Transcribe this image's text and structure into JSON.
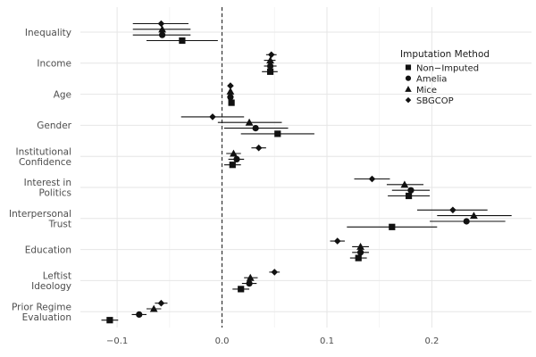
{
  "chart_data": {
    "type": "scatter",
    "title": "",
    "xlabel": "",
    "ylabel": "",
    "xlim": [
      -0.135,
      0.295
    ],
    "xticks": [
      -0.1,
      0.0,
      0.1,
      0.2
    ],
    "xtick_labels": [
      "−0.1",
      "0.0",
      "0.1",
      "0.2"
    ],
    "reference_line": 0,
    "grid": true,
    "legend_position": "top-right",
    "legend": {
      "title": "Imputation Method",
      "entries": [
        {
          "name": "Non−Imputed",
          "marker": "square"
        },
        {
          "name": "Amelia",
          "marker": "circle"
        },
        {
          "name": "Mice",
          "marker": "triangle"
        },
        {
          "name": "SBGCOP",
          "marker": "diamond"
        }
      ]
    },
    "categories": [
      {
        "label": [
          "Inequality"
        ],
        "series": [
          {
            "name": "SBGCOP",
            "estimate": -0.058,
            "low": -0.085,
            "high": -0.032
          },
          {
            "name": "Mice",
            "estimate": -0.057,
            "low": -0.085,
            "high": -0.03
          },
          {
            "name": "Amelia",
            "estimate": -0.057,
            "low": -0.085,
            "high": -0.03
          },
          {
            "name": "Non−Imputed",
            "estimate": -0.038,
            "low": -0.072,
            "high": -0.004
          }
        ]
      },
      {
        "label": [
          "Income"
        ],
        "series": [
          {
            "name": "SBGCOP",
            "estimate": 0.047,
            "low": 0.042,
            "high": 0.052
          },
          {
            "name": "Mice",
            "estimate": 0.046,
            "low": 0.04,
            "high": 0.051
          },
          {
            "name": "Amelia",
            "estimate": 0.046,
            "low": 0.04,
            "high": 0.052
          },
          {
            "name": "Non−Imputed",
            "estimate": 0.046,
            "low": 0.038,
            "high": 0.053
          }
        ]
      },
      {
        "label": [
          "Age"
        ],
        "series": [
          {
            "name": "SBGCOP",
            "estimate": 0.008,
            "low": 0.007,
            "high": 0.009
          },
          {
            "name": "Mice",
            "estimate": 0.008,
            "low": 0.007,
            "high": 0.009
          },
          {
            "name": "Amelia",
            "estimate": 0.008,
            "low": 0.007,
            "high": 0.009
          },
          {
            "name": "Non−Imputed",
            "estimate": 0.009,
            "low": 0.007,
            "high": 0.01
          }
        ]
      },
      {
        "label": [
          "Gender"
        ],
        "series": [
          {
            "name": "SBGCOP",
            "estimate": -0.009,
            "low": -0.039,
            "high": 0.021
          },
          {
            "name": "Mice",
            "estimate": 0.026,
            "low": -0.004,
            "high": 0.057
          },
          {
            "name": "Amelia",
            "estimate": 0.032,
            "low": 0.002,
            "high": 0.063
          },
          {
            "name": "Non−Imputed",
            "estimate": 0.053,
            "low": 0.018,
            "high": 0.088
          }
        ]
      },
      {
        "label": [
          "Institutional",
          "Confidence"
        ],
        "series": [
          {
            "name": "SBGCOP",
            "estimate": 0.035,
            "low": 0.028,
            "high": 0.042
          },
          {
            "name": "Mice",
            "estimate": 0.011,
            "low": 0.004,
            "high": 0.018
          },
          {
            "name": "Amelia",
            "estimate": 0.014,
            "low": 0.006,
            "high": 0.021
          },
          {
            "name": "Non−Imputed",
            "estimate": 0.01,
            "low": 0.002,
            "high": 0.018
          }
        ]
      },
      {
        "label": [
          "Interest in",
          "Politics"
        ],
        "series": [
          {
            "name": "SBGCOP",
            "estimate": 0.143,
            "low": 0.126,
            "high": 0.16
          },
          {
            "name": "Mice",
            "estimate": 0.174,
            "low": 0.157,
            "high": 0.192
          },
          {
            "name": "Amelia",
            "estimate": 0.18,
            "low": 0.162,
            "high": 0.198
          },
          {
            "name": "Non−Imputed",
            "estimate": 0.178,
            "low": 0.158,
            "high": 0.198
          }
        ]
      },
      {
        "label": [
          "Interpersonal",
          "Trust"
        ],
        "series": [
          {
            "name": "SBGCOP",
            "estimate": 0.22,
            "low": 0.186,
            "high": 0.253
          },
          {
            "name": "Mice",
            "estimate": 0.24,
            "low": 0.205,
            "high": 0.276
          },
          {
            "name": "Amelia",
            "estimate": 0.233,
            "low": 0.198,
            "high": 0.27
          },
          {
            "name": "Non−Imputed",
            "estimate": 0.162,
            "low": 0.119,
            "high": 0.205
          }
        ]
      },
      {
        "label": [
          "Education"
        ],
        "series": [
          {
            "name": "SBGCOP",
            "estimate": 0.11,
            "low": 0.103,
            "high": 0.117
          },
          {
            "name": "Mice",
            "estimate": 0.132,
            "low": 0.124,
            "high": 0.14
          },
          {
            "name": "Amelia",
            "estimate": 0.132,
            "low": 0.124,
            "high": 0.14
          },
          {
            "name": "Non−Imputed",
            "estimate": 0.13,
            "low": 0.122,
            "high": 0.138
          }
        ]
      },
      {
        "label": [
          "Leftist",
          "Ideology"
        ],
        "series": [
          {
            "name": "SBGCOP",
            "estimate": 0.05,
            "low": 0.045,
            "high": 0.055
          },
          {
            "name": "Mice",
            "estimate": 0.027,
            "low": 0.021,
            "high": 0.034
          },
          {
            "name": "Amelia",
            "estimate": 0.026,
            "low": 0.019,
            "high": 0.033
          },
          {
            "name": "Non−Imputed",
            "estimate": 0.018,
            "low": 0.01,
            "high": 0.026
          }
        ]
      },
      {
        "label": [
          "Prior Regime",
          "Evaluation"
        ],
        "series": [
          {
            "name": "SBGCOP",
            "estimate": -0.058,
            "low": -0.064,
            "high": -0.052
          },
          {
            "name": "Mice",
            "estimate": -0.065,
            "low": -0.072,
            "high": -0.058
          },
          {
            "name": "Amelia",
            "estimate": -0.079,
            "low": -0.086,
            "high": -0.072
          },
          {
            "name": "Non−Imputed",
            "estimate": -0.107,
            "low": -0.115,
            "high": -0.099
          }
        ]
      }
    ]
  }
}
